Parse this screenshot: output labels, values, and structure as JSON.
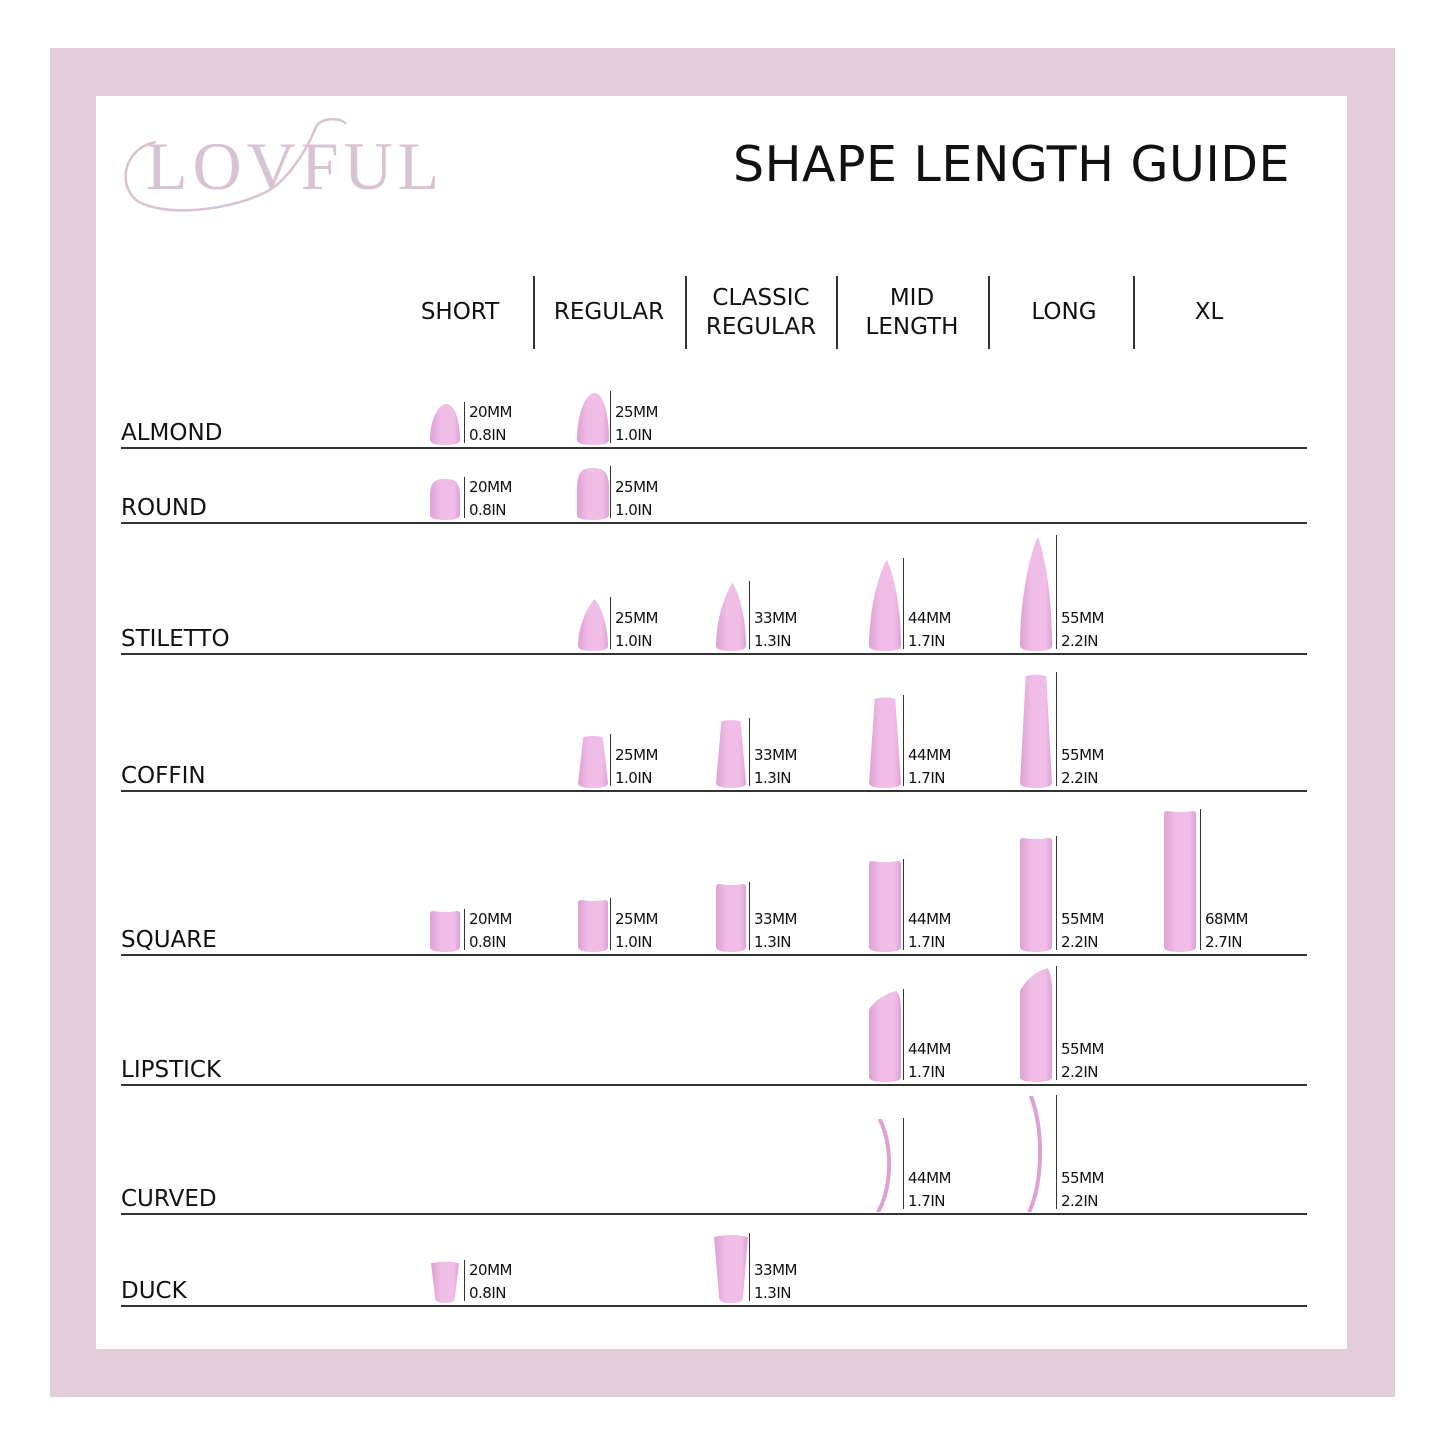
{
  "brand": {
    "logo_text": "LOVFUL",
    "logo_color": "#d9c3d2"
  },
  "title": "SHAPE LENGTH GUIDE",
  "colors": {
    "frame": "#e2cdd9",
    "nail": "#efbde6",
    "nail_shade": "#dfa0d6",
    "text": "#111111"
  },
  "columns": [
    {
      "key": "short",
      "label": "SHORT"
    },
    {
      "key": "regular",
      "label": "REGULAR"
    },
    {
      "key": "classic",
      "label": "CLASSIC\nREGULAR"
    },
    {
      "key": "mid",
      "label": "MID\nLENGTH"
    },
    {
      "key": "long",
      "label": "LONG"
    },
    {
      "key": "xl",
      "label": "XL"
    }
  ],
  "rows": [
    {
      "shape": "ALMOND",
      "icon": "almond-nail-icon",
      "items": [
        {
          "col": "short",
          "mm": "20MM",
          "in": "0.8IN"
        },
        {
          "col": "regular",
          "mm": "25MM",
          "in": "1.0IN"
        }
      ]
    },
    {
      "shape": "ROUND",
      "icon": "round-nail-icon",
      "items": [
        {
          "col": "short",
          "mm": "20MM",
          "in": "0.8IN"
        },
        {
          "col": "regular",
          "mm": "25MM",
          "in": "1.0IN"
        }
      ]
    },
    {
      "shape": "STILETTO",
      "icon": "stiletto-nail-icon",
      "items": [
        {
          "col": "regular",
          "mm": "25MM",
          "in": "1.0IN"
        },
        {
          "col": "classic",
          "mm": "33MM",
          "in": "1.3IN"
        },
        {
          "col": "mid",
          "mm": "44MM",
          "in": "1.7IN"
        },
        {
          "col": "long",
          "mm": "55MM",
          "in": "2.2IN"
        }
      ]
    },
    {
      "shape": "COFFIN",
      "icon": "coffin-nail-icon",
      "items": [
        {
          "col": "regular",
          "mm": "25MM",
          "in": "1.0IN"
        },
        {
          "col": "classic",
          "mm": "33MM",
          "in": "1.3IN"
        },
        {
          "col": "mid",
          "mm": "44MM",
          "in": "1.7IN"
        },
        {
          "col": "long",
          "mm": "55MM",
          "in": "2.2IN"
        }
      ]
    },
    {
      "shape": "SQUARE",
      "icon": "square-nail-icon",
      "items": [
        {
          "col": "short",
          "mm": "20MM",
          "in": "0.8IN"
        },
        {
          "col": "regular",
          "mm": "25MM",
          "in": "1.0IN"
        },
        {
          "col": "classic",
          "mm": "33MM",
          "in": "1.3IN"
        },
        {
          "col": "mid",
          "mm": "44MM",
          "in": "1.7IN"
        },
        {
          "col": "long",
          "mm": "55MM",
          "in": "2.2IN"
        },
        {
          "col": "xl",
          "mm": "68MM",
          "in": "2.7IN"
        }
      ]
    },
    {
      "shape": "LIPSTICK",
      "icon": "lipstick-nail-icon",
      "items": [
        {
          "col": "mid",
          "mm": "44MM",
          "in": "1.7IN"
        },
        {
          "col": "long",
          "mm": "55MM",
          "in": "2.2IN"
        }
      ]
    },
    {
      "shape": "CURVED",
      "icon": "curved-nail-icon",
      "items": [
        {
          "col": "mid",
          "mm": "44MM",
          "in": "1.7IN"
        },
        {
          "col": "long",
          "mm": "55MM",
          "in": "2.2IN"
        }
      ]
    },
    {
      "shape": "DUCK",
      "icon": "duck-nail-icon",
      "items": [
        {
          "col": "short",
          "mm": "20MM",
          "in": "0.8IN"
        },
        {
          "col": "classic",
          "mm": "33MM",
          "in": "1.3IN"
        }
      ]
    }
  ]
}
